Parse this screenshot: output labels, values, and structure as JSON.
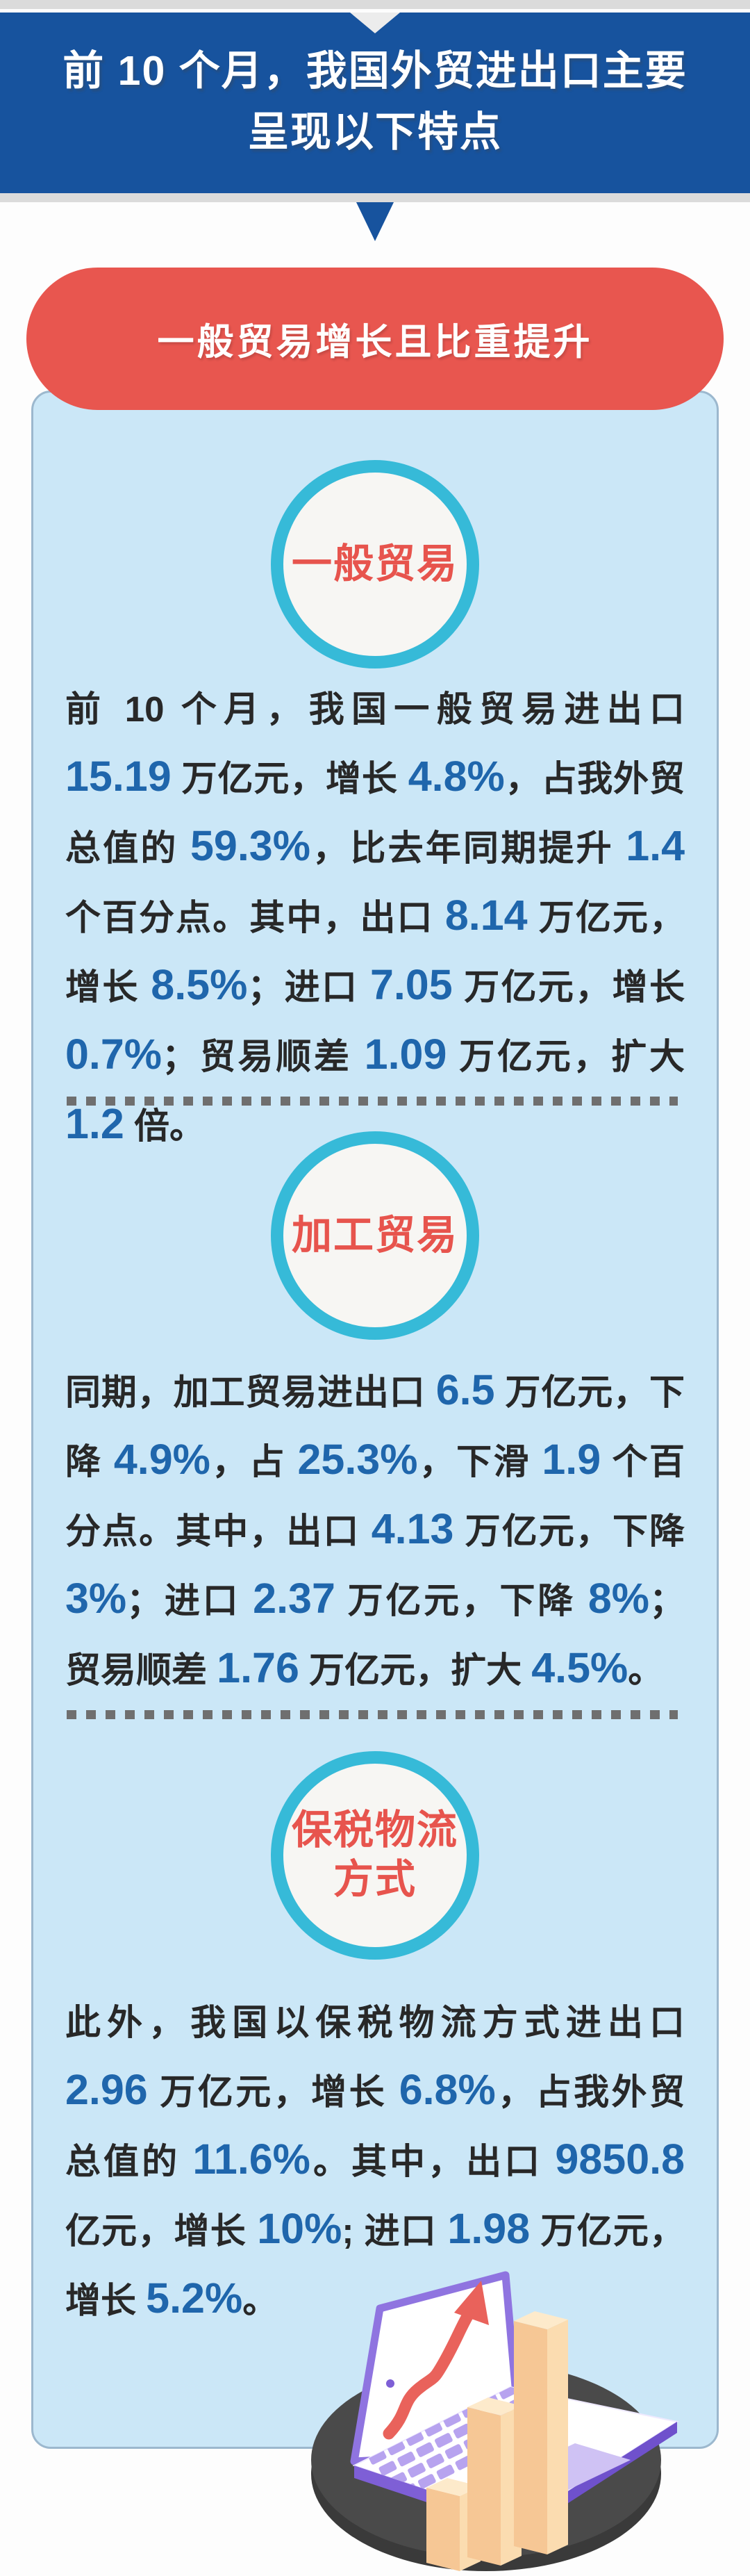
{
  "banner": {
    "title": "前 10 个月，我国外贸进出口主要呈现以下特点"
  },
  "section": {
    "pill_title": "一般贸易增长且比重提升"
  },
  "blocks": [
    {
      "badge": "一般贸易",
      "segments": [
        {
          "t": "前 10 个月，我国一般贸易进出口 "
        },
        {
          "n": "15.19"
        },
        {
          "t": " 万亿元，增长 "
        },
        {
          "n": "4.8%"
        },
        {
          "t": "，占我外贸总值的 "
        },
        {
          "n": "59.3%"
        },
        {
          "t": "，比去年同期提升 "
        },
        {
          "n": "1.4"
        },
        {
          "t": " 个百分点。其中，出口 "
        },
        {
          "n": "8.14"
        },
        {
          "t": " 万亿元，增长 "
        },
        {
          "n": "8.5%"
        },
        {
          "t": "；进口 "
        },
        {
          "n": "7.05"
        },
        {
          "t": " 万亿元，增长 "
        },
        {
          "n": "0.7%"
        },
        {
          "t": "；贸易顺差 "
        },
        {
          "n": "1.09"
        },
        {
          "t": " 万亿元，扩大 "
        },
        {
          "n": "1.2"
        },
        {
          "t": " 倍。"
        }
      ]
    },
    {
      "badge": "加工贸易",
      "segments": [
        {
          "t": "同期，加工贸易进出口 "
        },
        {
          "n": "6.5"
        },
        {
          "t": " 万亿元，下降 "
        },
        {
          "n": "4.9%"
        },
        {
          "t": "，占 "
        },
        {
          "n": "25.3%"
        },
        {
          "t": "，下滑 "
        },
        {
          "n": "1.9"
        },
        {
          "t": " 个百分点。其中，出口 "
        },
        {
          "n": "4.13"
        },
        {
          "t": " 万亿元，下降 "
        },
        {
          "n": "3%"
        },
        {
          "t": "；进口 "
        },
        {
          "n": "2.37"
        },
        {
          "t": " 万亿元，下降 "
        },
        {
          "n": "8%"
        },
        {
          "t": "；贸易顺差 "
        },
        {
          "n": "1.76"
        },
        {
          "t": " 万亿元，扩大 "
        },
        {
          "n": "4.5%"
        },
        {
          "t": "。"
        }
      ]
    },
    {
      "badge": "保税物流方式",
      "segments": [
        {
          "t": "此外，我国以保税物流方式进出口 "
        },
        {
          "n": "2.96"
        },
        {
          "t": " 万亿元，增长 "
        },
        {
          "n": "6.8%"
        },
        {
          "t": "，占我外贸总值的 "
        },
        {
          "n": "11.6%"
        },
        {
          "t": "。其中，出口 "
        },
        {
          "n": "9850.8"
        },
        {
          "t": " 亿元，增长 "
        },
        {
          "n": "10%"
        },
        {
          "t": "; 进口 "
        },
        {
          "n": "1.98"
        },
        {
          "t": " 万亿元，增长 "
        },
        {
          "n": "5.2%"
        },
        {
          "t": "。"
        }
      ]
    }
  ],
  "illustration": {
    "icons": [
      "platform-disc",
      "laptop-icon",
      "growth-arrow-icon",
      "bar-chart-icon"
    ]
  },
  "colors": {
    "banner_blue": "#17539e",
    "strip_gray": "#dbdbdb",
    "pill_red": "#e8564f",
    "card_bg": "#cbe7f7",
    "card_border": "#9cb8ce",
    "circle_teal": "#36bad8",
    "badge_red": "#e7544d",
    "number_blue": "#1f66ac",
    "body_text": "#282828",
    "dash_gray": "#6f6f6f",
    "platform_gray": "#4a4a4a",
    "laptop_purple": "#7e5fd6",
    "bar_peach": "#f6c795",
    "arrow_red": "#e9625b"
  }
}
